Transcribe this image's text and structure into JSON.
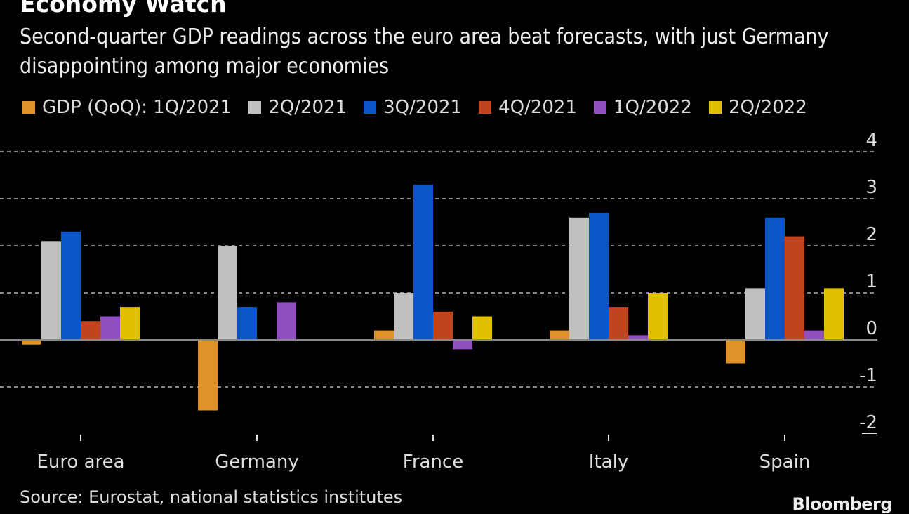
{
  "chart_data": {
    "type": "bar",
    "title": "Economy Watch",
    "subtitle": "Second-quarter GDP readings across the euro area beat forecasts, with just Germany disappointing among major economies",
    "categories": [
      "Euro area",
      "Germany",
      "France",
      "Italy",
      "Spain"
    ],
    "series": [
      {
        "name": "GDP (QoQ): 1Q/2021",
        "color": "#e0912a",
        "values": [
          -0.1,
          -1.5,
          0.2,
          0.2,
          -0.5
        ]
      },
      {
        "name": "2Q/2021",
        "color": "#c0c0c0",
        "values": [
          2.1,
          2.0,
          1.0,
          2.6,
          1.1
        ]
      },
      {
        "name": "3Q/2021",
        "color": "#0a56c8",
        "values": [
          2.3,
          0.7,
          3.3,
          2.7,
          2.6
        ]
      },
      {
        "name": "4Q/2021",
        "color": "#c0441e",
        "values": [
          0.4,
          0.0,
          0.6,
          0.7,
          2.2
        ]
      },
      {
        "name": "1Q/2022",
        "color": "#9050c0",
        "values": [
          0.5,
          0.8,
          -0.2,
          0.1,
          0.2
        ]
      },
      {
        "name": "2Q/2022",
        "color": "#e0c000",
        "values": [
          0.7,
          0.0,
          0.5,
          1.0,
          1.1
        ]
      }
    ],
    "ylim": [
      -2,
      4
    ],
    "yticks": [
      4,
      3,
      2,
      1,
      0,
      -1,
      -2
    ],
    "grid": true,
    "legend": "top",
    "y_axis_side": "right"
  },
  "source": "Source: Eurostat, national statistics institutes",
  "logo": "Bloomberg"
}
